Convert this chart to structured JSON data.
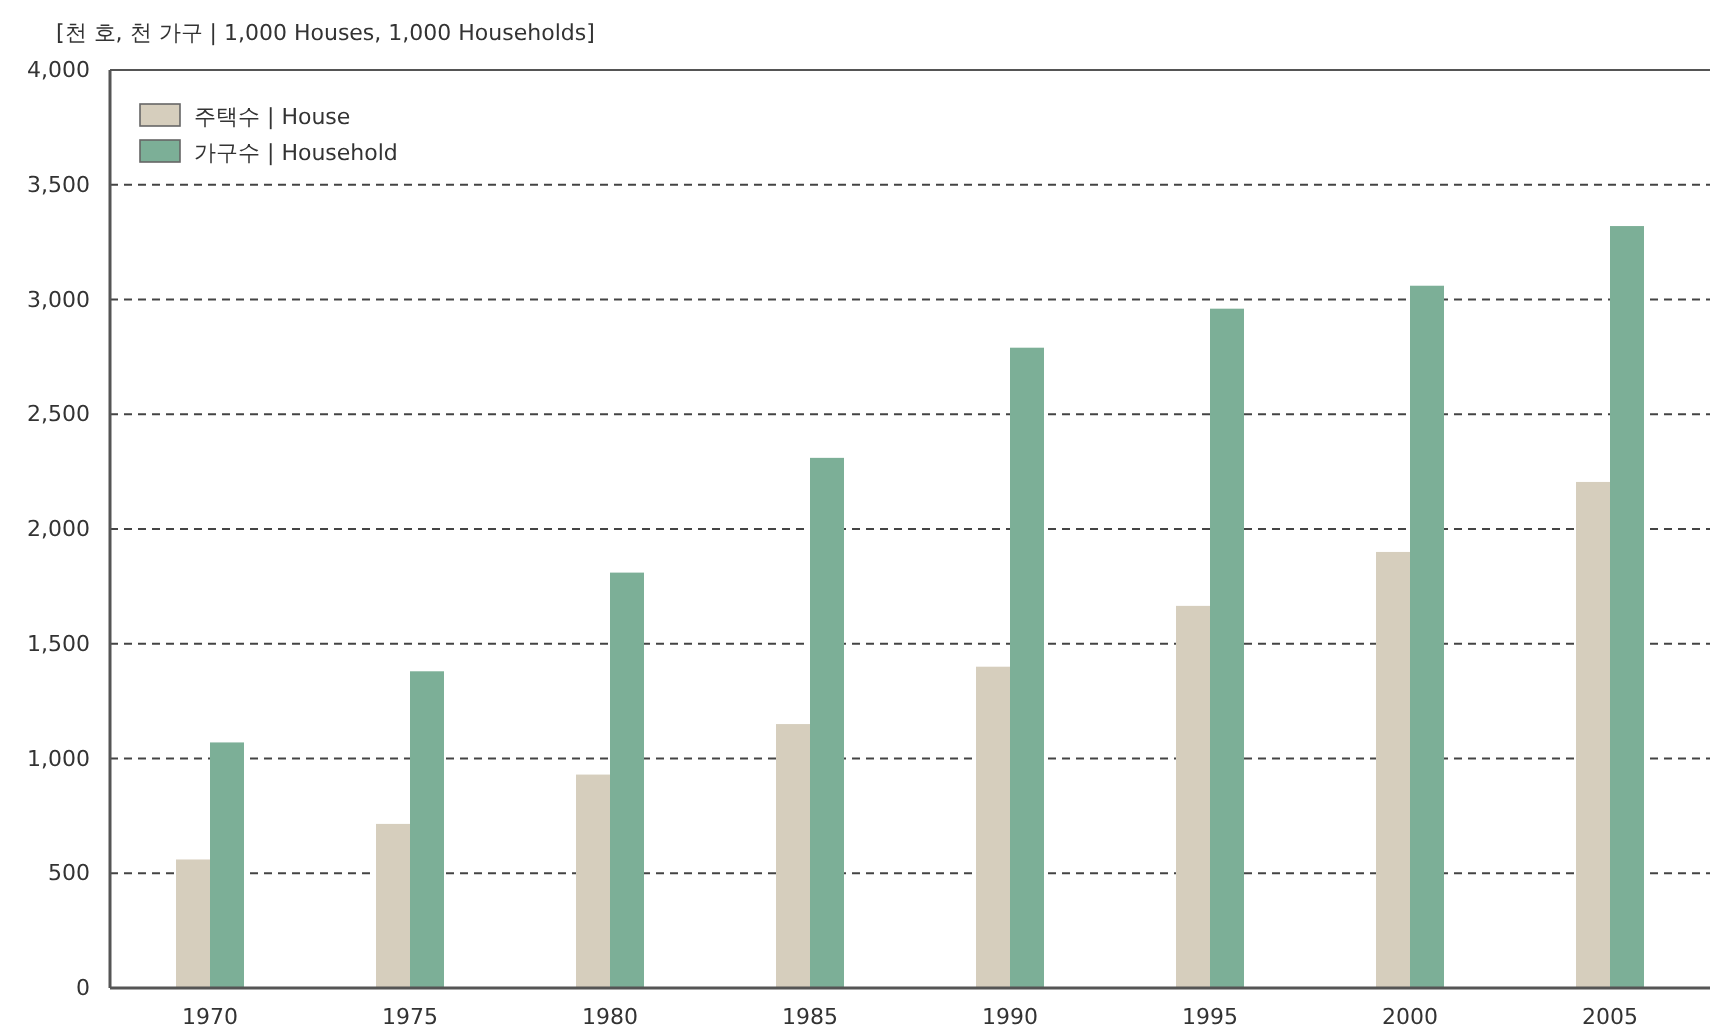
{
  "chart_data": {
    "type": "bar",
    "ylabel": "[천 호, 천 가구 | 1,000 Houses, 1,000 Households]",
    "categories": [
      "1970",
      "1975",
      "1980",
      "1985",
      "1990",
      "1995",
      "2000",
      "2005"
    ],
    "series": [
      {
        "name": "주택수 | House",
        "color": "#d6cebd",
        "values": [
          560,
          715,
          930,
          1150,
          1400,
          1665,
          1900,
          2205
        ]
      },
      {
        "name": "가구수 | Household",
        "color": "#7caf97",
        "values": [
          1070,
          1380,
          1810,
          2310,
          2790,
          2960,
          3060,
          3320
        ]
      }
    ],
    "ylim": [
      0,
      4000
    ],
    "yticks": [
      {
        "value": 0,
        "label": "0"
      },
      {
        "value": 500,
        "label": "500"
      },
      {
        "value": 1000,
        "label": "1,000"
      },
      {
        "value": 1500,
        "label": "1,500"
      },
      {
        "value": 2000,
        "label": "2,000"
      },
      {
        "value": 2500,
        "label": "2,500"
      },
      {
        "value": 3000,
        "label": "3,000"
      },
      {
        "value": 3500,
        "label": "3,500"
      },
      {
        "value": 4000,
        "label": "4,000"
      }
    ],
    "grid": "y",
    "legend": "top left"
  }
}
